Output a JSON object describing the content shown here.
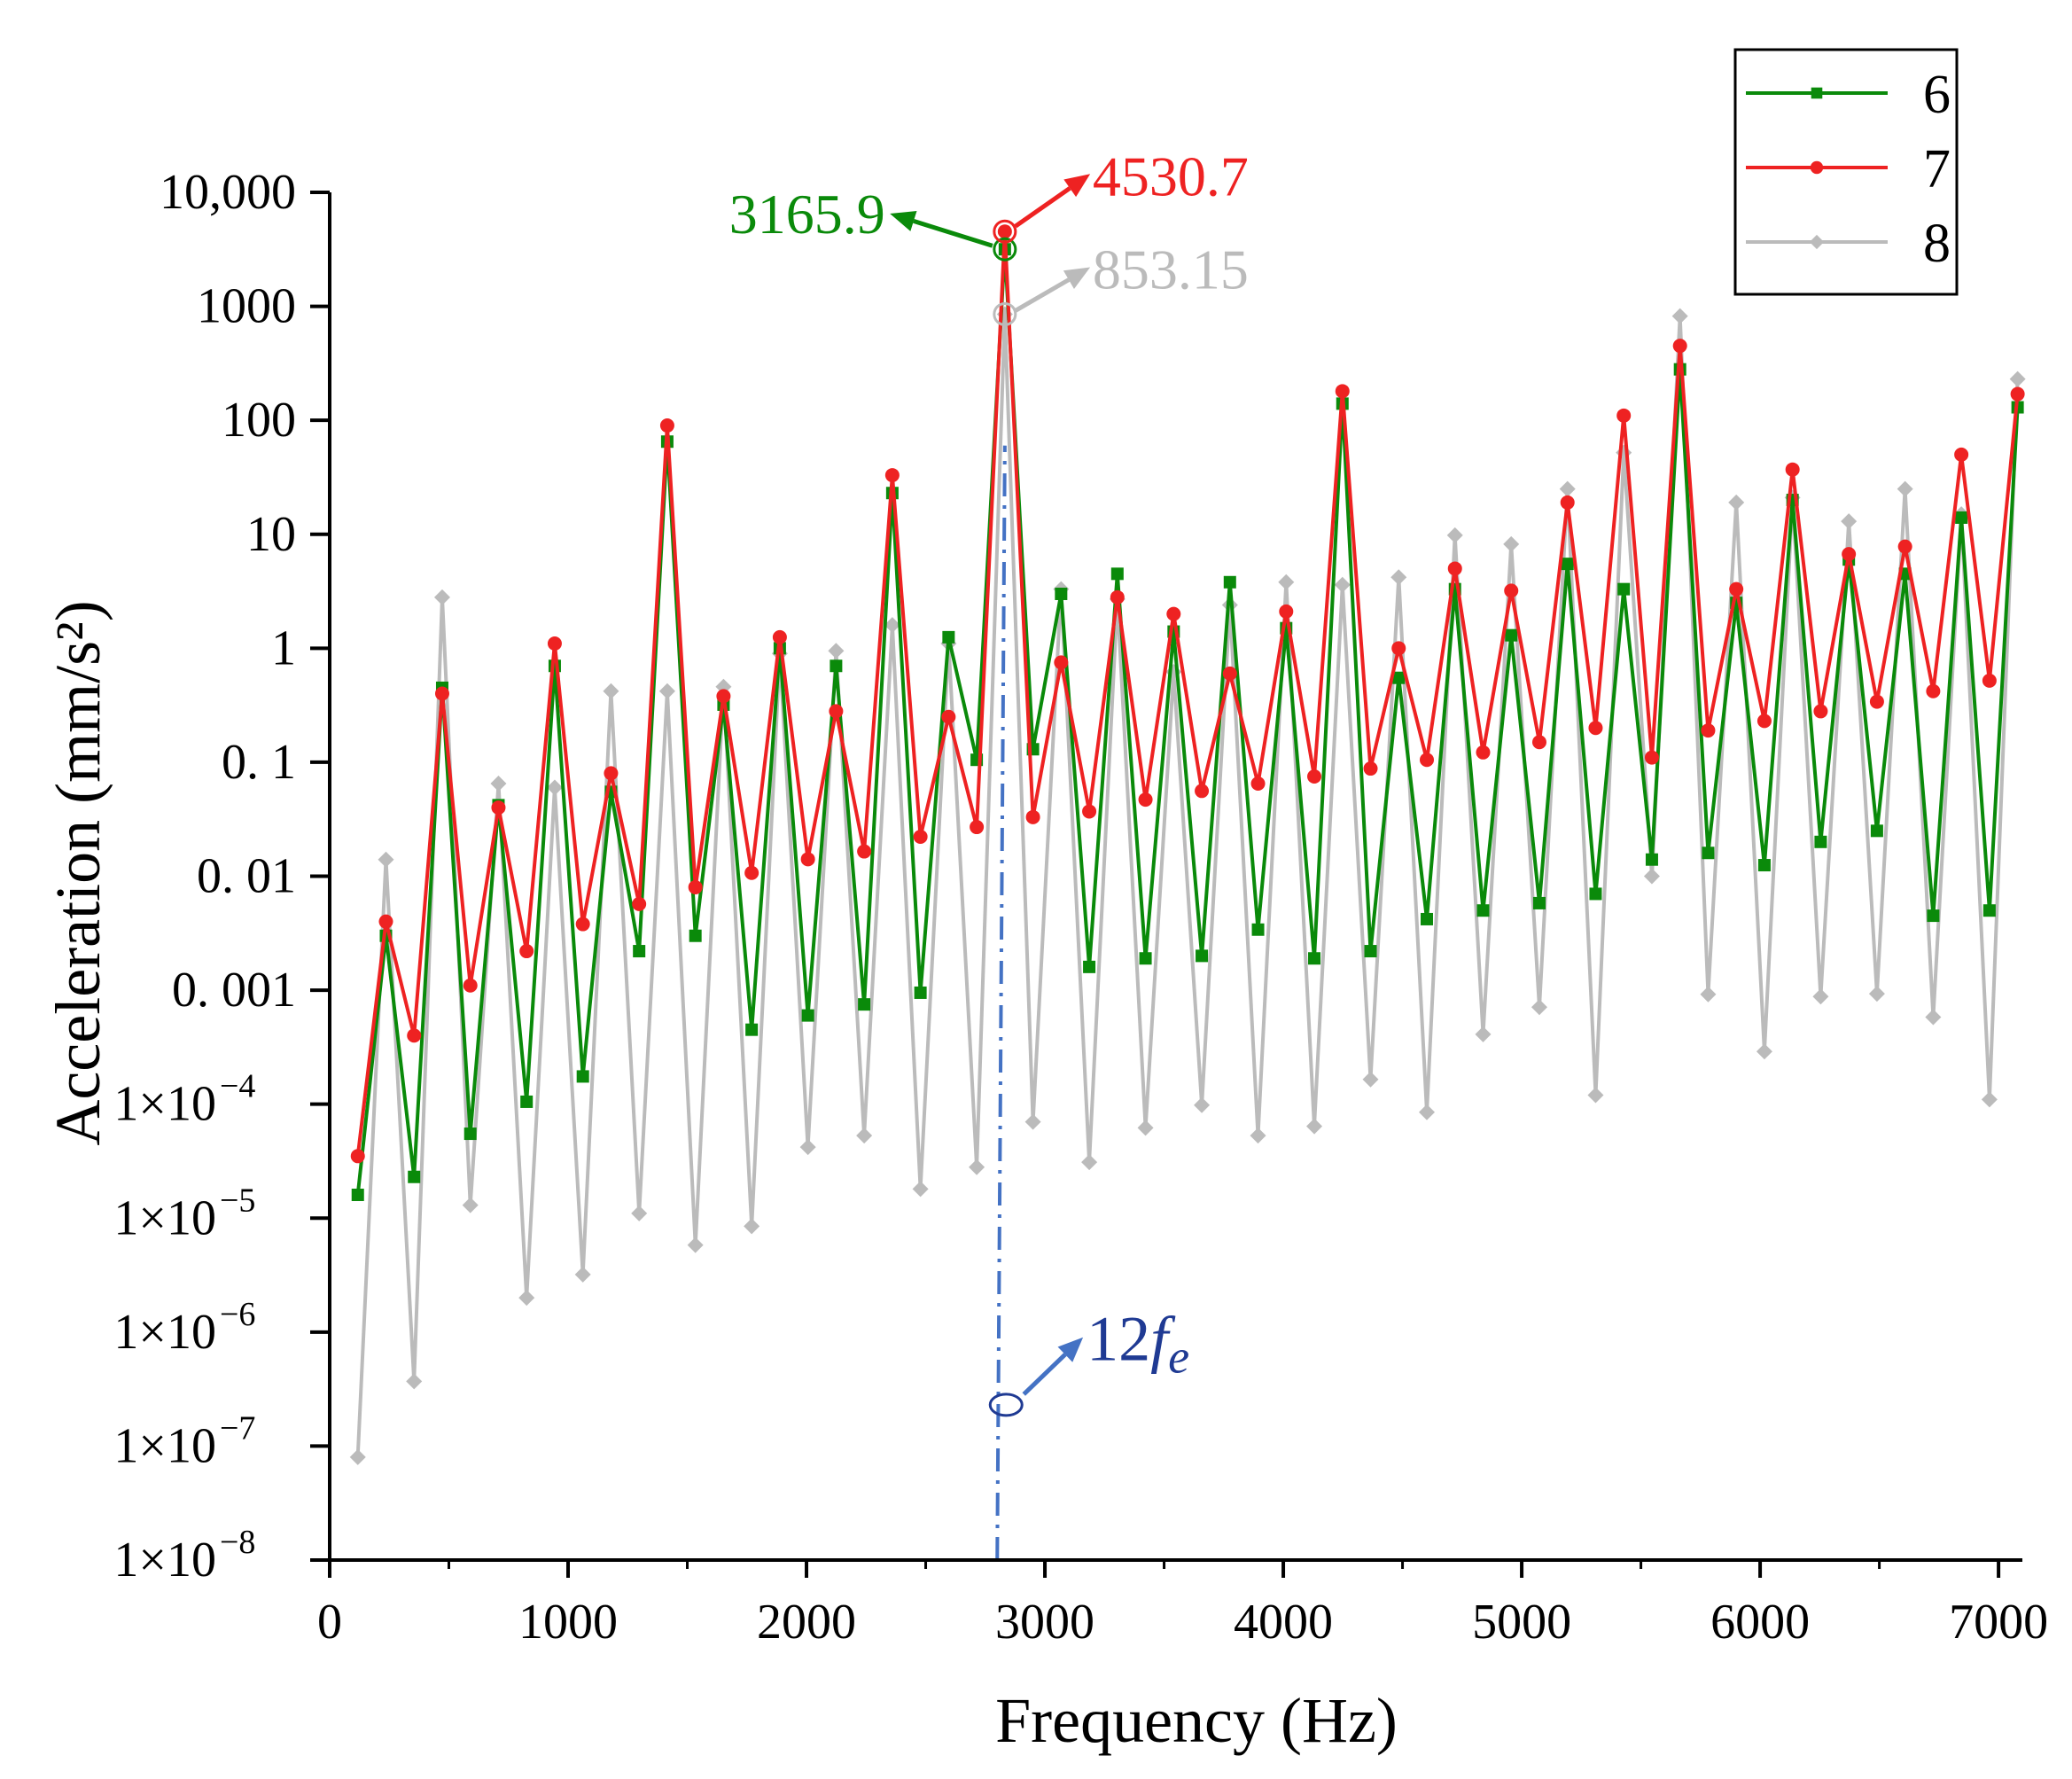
{
  "chart_data": {
    "type": "line",
    "title": "",
    "xlabel": "Frequency (Hz)",
    "ylabel": "Acceleration (mm/s²)",
    "xlim": [
      0,
      7100
    ],
    "ylim": [
      1e-08,
      10000
    ],
    "yscale": "log",
    "grid": false,
    "legend_position": "top-right",
    "x_ticks": [
      "0",
      "1000",
      "2000",
      "3000",
      "4000",
      "5000",
      "6000",
      "7000"
    ],
    "y_ticks": [
      {
        "value": 10000,
        "label": "10,000"
      },
      {
        "value": 1000,
        "label": "1000"
      },
      {
        "value": 100,
        "label": "100"
      },
      {
        "value": 10,
        "label": "10"
      },
      {
        "value": 1,
        "label": "1"
      },
      {
        "value": 0.1,
        "label": "0. 1"
      },
      {
        "value": 0.01,
        "label": "0. 01"
      },
      {
        "value": 0.001,
        "label": "0. 001"
      },
      {
        "value": 0.0001,
        "label": "1×10",
        "exp": "−4"
      },
      {
        "value": 1e-05,
        "label": "1×10",
        "exp": "−5"
      },
      {
        "value": 1e-06,
        "label": "1×10",
        "exp": "−6"
      },
      {
        "value": 1e-07,
        "label": "1×10",
        "exp": "−7"
      },
      {
        "value": 1e-08,
        "label": "1×10",
        "exp": "−8"
      }
    ],
    "x": [
      118,
      236,
      354,
      472,
      590,
      708,
      826,
      944,
      1062,
      1180,
      1298,
      1416,
      1534,
      1652,
      1770,
      1888,
      2006,
      2124,
      2242,
      2360,
      2478,
      2596,
      2714,
      2832,
      2950,
      3068,
      3186,
      3304,
      3422,
      3540,
      3658,
      3776,
      3894,
      4012,
      4130,
      4248,
      4366,
      4484,
      4602,
      4720,
      4838,
      4956,
      5074,
      5192,
      5310,
      5428,
      5546,
      5664,
      5782,
      5900,
      6018,
      6136,
      6254,
      6372,
      6490,
      6608,
      6726,
      6844,
      6962,
      7080
    ],
    "series": [
      {
        "name": "6",
        "color": "#0a8a0a",
        "marker": "square",
        "values": [
          1.6e-05,
          0.003,
          2.3e-05,
          0.45,
          5.5e-05,
          0.042,
          0.000105,
          0.7,
          0.000175,
          0.055,
          0.0022,
          65,
          0.003,
          0.32,
          0.00045,
          1.0,
          0.0006,
          0.7,
          0.00075,
          23,
          0.00095,
          1.25,
          0.105,
          3165.9,
          0.13,
          3.0,
          0.0016,
          4.5,
          0.0019,
          1.4,
          0.002,
          3.8,
          0.0034,
          1.5,
          0.0019,
          140,
          0.0022,
          0.55,
          0.0042,
          3.3,
          0.005,
          1.3,
          0.0058,
          5.5,
          0.007,
          3.3,
          0.014,
          280,
          0.016,
          2.5,
          0.0125,
          20,
          0.02,
          6.0,
          0.025,
          4.5,
          0.0045,
          14,
          0.005,
          130
        ]
      },
      {
        "name": "7",
        "color": "#ee2222",
        "marker": "circle",
        "values": [
          3.5e-05,
          0.004,
          0.0004,
          0.4,
          0.0011,
          0.04,
          0.0022,
          1.1,
          0.0038,
          0.08,
          0.0057,
          90,
          0.008,
          0.38,
          0.0107,
          1.25,
          0.0141,
          0.28,
          0.0165,
          33,
          0.0222,
          0.25,
          0.027,
          4530.7,
          0.033,
          0.75,
          0.037,
          2.8,
          0.047,
          2.0,
          0.056,
          0.6,
          0.065,
          2.1,
          0.075,
          180,
          0.088,
          1.0,
          0.105,
          5.0,
          0.122,
          3.2,
          0.15,
          19,
          0.2,
          110,
          0.11,
          450,
          0.19,
          3.3,
          0.23,
          37,
          0.28,
          6.7,
          0.34,
          7.8,
          0.42,
          50,
          0.52,
          170
        ]
      },
      {
        "name": "8",
        "color": "#bbbbbb",
        "marker": "diamond",
        "values": [
          8e-08,
          0.014,
          3.7e-07,
          2.8,
          1.3e-05,
          0.065,
          2e-06,
          0.06,
          3.2e-06,
          0.42,
          1.1e-05,
          0.42,
          5.8e-06,
          0.46,
          8.5e-06,
          0.9,
          4.2e-05,
          0.95,
          5.3e-05,
          1.6,
          1.8e-05,
          1.1,
          2.8e-05,
          853.15,
          7e-05,
          3.3,
          3.1e-05,
          2.7,
          6.2e-05,
          0.62,
          9.8e-05,
          2.4,
          5.3e-05,
          3.8,
          6.4e-05,
          3.6,
          0.000165,
          4.2,
          8.5e-05,
          9.8,
          0.00041,
          8.2,
          0.00071,
          25,
          0.00012,
          52,
          0.01,
          820,
          0.00092,
          19,
          0.00029,
          21,
          0.00088,
          13,
          0.00093,
          25,
          0.00058,
          15,
          0.00011,
          230
        ]
      }
    ],
    "annotations": [
      {
        "text": "3165.9",
        "value": 3165.9,
        "series": "6",
        "color": "#0a8a0a"
      },
      {
        "text": "4530.7",
        "value": 4530.7,
        "series": "7",
        "color": "#ee2222"
      },
      {
        "text": "853.15",
        "value": 853.15,
        "series": "8",
        "color": "#bbbbbb"
      },
      {
        "text": "12",
        "subscript_text": "f",
        "subscript": "e",
        "frequency": 2800,
        "color": "#1f3a93",
        "line_color": "#4472c4"
      }
    ]
  }
}
